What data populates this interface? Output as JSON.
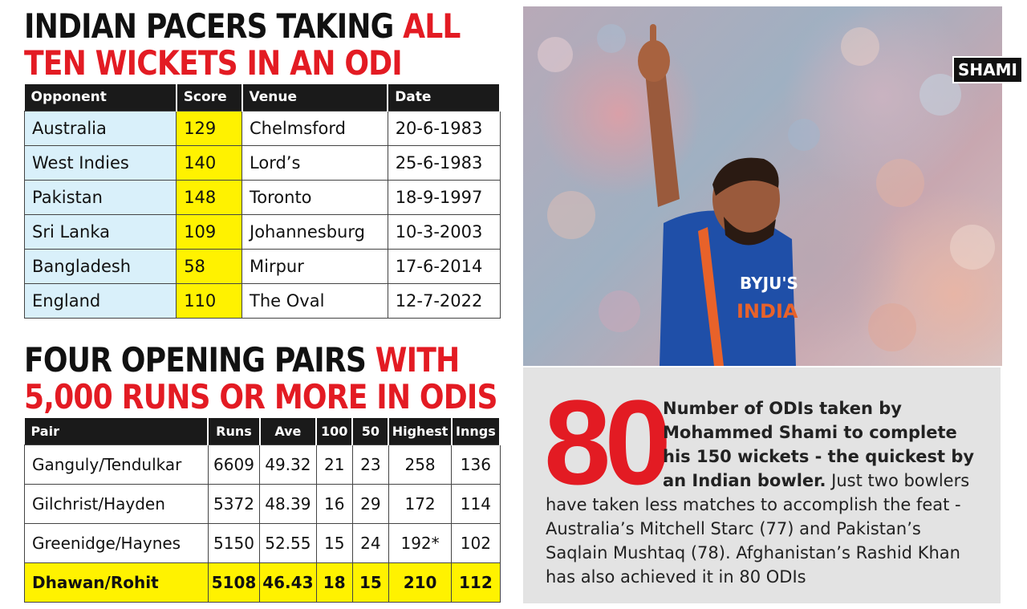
{
  "headline1": {
    "black": "INDIAN PACERS TAKING ",
    "red_line1": "ALL",
    "red_line2": "TEN WICKETS IN AN ODI"
  },
  "table1": {
    "headers": [
      "Opponent",
      "Score",
      "Venue",
      "Date"
    ],
    "rows": [
      [
        "Australia",
        "129",
        "Chelmsford",
        "20-6-1983"
      ],
      [
        "West Indies",
        "140",
        "Lord’s",
        "25-6-1983"
      ],
      [
        "Pakistan",
        "148",
        "Toronto",
        "18-9-1997"
      ],
      [
        "Sri Lanka",
        "109",
        "Johannesburg",
        "10-3-2003"
      ],
      [
        "Bangladesh",
        "58",
        "Mirpur",
        "17-6-2014"
      ],
      [
        "England",
        "110",
        "The Oval",
        "12-7-2022"
      ]
    ]
  },
  "headline2": {
    "black": "FOUR OPENING PAIRS ",
    "red_line1": "WITH",
    "red_line2": "5,000 RUNS OR MORE IN ODIS"
  },
  "table2": {
    "headers": [
      "Pair",
      "Runs",
      "Ave",
      "100",
      "50",
      "Highest",
      "Inngs"
    ],
    "rows": [
      [
        "Ganguly/Tendulkar",
        "6609",
        "49.32",
        "21",
        "23",
        "258",
        "136"
      ],
      [
        "Gilchrist/Hayden",
        "5372",
        "48.39",
        "16",
        "29",
        "172",
        "114"
      ],
      [
        "Greenidge/Haynes",
        "5150",
        "52.55",
        "15",
        "24",
        "192*",
        "102"
      ],
      [
        "Dhawan/Rohit",
        "5108",
        "46.43",
        "18",
        "15",
        "210",
        "112"
      ]
    ]
  },
  "photo": {
    "label": "SHAMI",
    "jersey_text": "INDIA",
    "sponsor_text": "BYJU'S"
  },
  "factbox": {
    "number": "80",
    "bold_text": "Number of ODIs taken by Mohammed Shami to complete his 150 wickets - the quickest by an Indian bowler.",
    "body_text": " Just two bowlers have taken less matches to accomplish the feat - Australia’s Mitchell Starc (77) and Pakistan’s Saqlain Mushtaq (78). Afghanistan’s Rashid Khan has also achieved it in 80 ODIs"
  },
  "colors": {
    "accent_red": "#e31b23",
    "highlight_yellow": "#fff200",
    "light_blue": "#d9f0fa",
    "header_black": "#1a1a1a",
    "box_grey": "#e3e3e3"
  }
}
